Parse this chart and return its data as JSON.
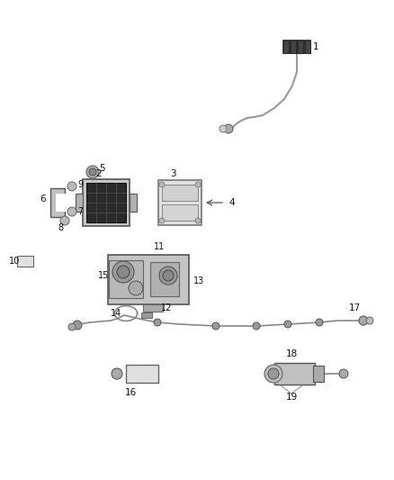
{
  "bg_color": "#ffffff",
  "fig_width": 4.38,
  "fig_height": 5.33,
  "dpi": 100
}
